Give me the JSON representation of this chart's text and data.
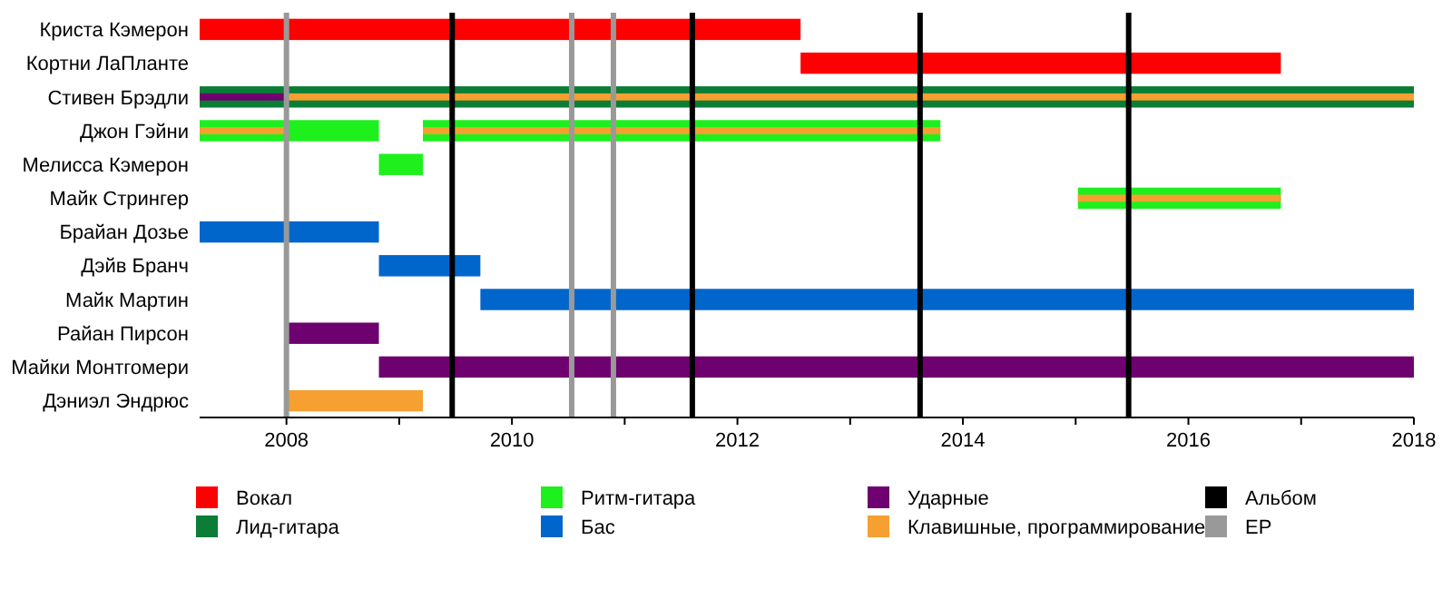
{
  "chart_data": {
    "type": "bar",
    "orientation": "horizontal",
    "legend": "bottom",
    "grid": false,
    "categories": [
      "Криста Кэмерон",
      "Кортни ЛаПланте",
      "Стивен Брэдли",
      "Джон Гэйни",
      "Мелисса Кэмерон",
      "Майк Стрингер",
      "Брайан Дозье",
      "Дэйв Бранч",
      "Майк Мартин",
      "Райан Пирсон",
      "Майки Монтгомери",
      "Дэниэл Эндрюс"
    ],
    "xlim": [
      2007.23,
      2018
    ],
    "xticks": [
      2008,
      {
        "value": 2009,
        "label": null
      },
      2010,
      {
        "value": 2011,
        "label": null
      },
      2012,
      {
        "value": 2013,
        "label": null
      },
      2014,
      {
        "value": 2015,
        "label": null
      },
      2016,
      {
        "value": 2017,
        "label": null
      },
      2018
    ],
    "series": [
      {
        "name": "Вокал",
        "color": "#ff0000",
        "base": [
          2007.23,
          2012.56,
          null,
          null,
          null,
          null,
          null,
          null,
          null,
          null,
          null,
          null
        ],
        "values": [
          5.33,
          4.26,
          null,
          null,
          null,
          null,
          null,
          null,
          null,
          null,
          null,
          null
        ]
      },
      {
        "name": "Лид-гитара",
        "color": "#0b7d36",
        "base": [
          null,
          null,
          2007.23,
          null,
          null,
          null,
          null,
          null,
          null,
          null,
          null,
          null
        ],
        "values": [
          null,
          null,
          10.77,
          null,
          null,
          null,
          null,
          null,
          null,
          null,
          null,
          null
        ]
      },
      {
        "name": "Ритм-гитара",
        "color": "#1ef01e",
        "base": [
          null,
          null,
          null,
          2007.23,
          2008.82,
          2015.02,
          null,
          null,
          null,
          null,
          null,
          null
        ],
        "values": [
          null,
          null,
          null,
          1.59,
          0.39,
          1.8,
          null,
          null,
          null,
          null,
          null,
          null
        ]
      },
      {
        "color": "#1ef01e",
        "base": [
          null,
          null,
          null,
          2009.21,
          null,
          null,
          null,
          null,
          null,
          null,
          null,
          null
        ],
        "values": [
          null,
          null,
          null,
          4.59,
          null,
          null,
          null,
          null,
          null,
          null,
          null,
          null
        ]
      },
      {
        "name": "Бас",
        "color": "#0066cc",
        "base": [
          null,
          null,
          null,
          null,
          null,
          null,
          2007.23,
          2008.82,
          2009.72,
          null,
          null,
          null
        ],
        "values": [
          null,
          null,
          null,
          null,
          null,
          null,
          1.59,
          0.9,
          8.28,
          null,
          null,
          null
        ]
      },
      {
        "name": "Ударные",
        "color": "#6f006f",
        "base": [
          null,
          null,
          2007.23,
          null,
          null,
          null,
          null,
          null,
          null,
          2008.0,
          2008.82,
          null
        ],
        "values": [
          null,
          null,
          0.77,
          null,
          null,
          null,
          null,
          null,
          null,
          0.82,
          9.18,
          null
        ]
      },
      {
        "name": "Клавишные, программирование",
        "color": "#f5a030",
        "base": [
          null,
          null,
          2008.0,
          2007.23,
          null,
          2015.02,
          null,
          null,
          null,
          null,
          null,
          2008.0
        ],
        "values": [
          null,
          null,
          10,
          0.77,
          null,
          1.8,
          null,
          null,
          null,
          null,
          null,
          1.21
        ]
      },
      {
        "color": "#f5a030",
        "base": [
          null,
          null,
          null,
          2009.21,
          null,
          null,
          null,
          null,
          null,
          null,
          null,
          null
        ],
        "values": [
          null,
          null,
          null,
          4.59,
          null,
          null,
          null,
          null,
          null,
          null,
          null,
          null
        ]
      }
    ],
    "ref_lines": [
      {
        "axis": "x",
        "value": 2009.47,
        "color": "#000000",
        "label": "Альбом"
      },
      {
        "axis": "x",
        "value": 2011.6,
        "color": "#000000"
      },
      {
        "axis": "x",
        "value": 2013.62,
        "color": "#000000"
      },
      {
        "axis": "x",
        "value": 2015.47,
        "color": "#000000"
      },
      {
        "axis": "x",
        "value": 2008.0,
        "color": "#999999",
        "label": "EP"
      },
      {
        "axis": "x",
        "value": 2010.53,
        "color": "#999999"
      },
      {
        "axis": "x",
        "value": 2010.9,
        "color": "#999999"
      }
    ]
  }
}
